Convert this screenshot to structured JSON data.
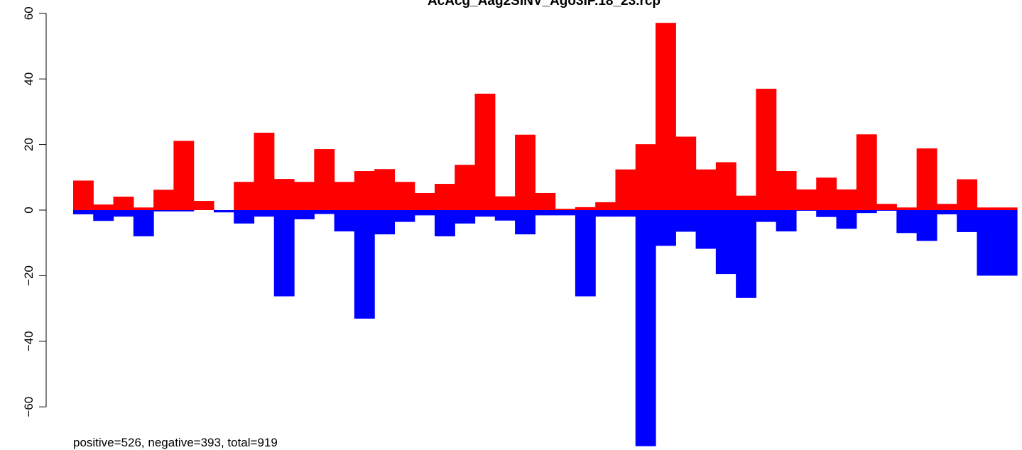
{
  "chart_data": {
    "type": "bar",
    "title": "AcAcg_Aag2SINV_Ago3IP.18_23.rcp",
    "xlabel": "",
    "ylabel": "",
    "ylim": [
      -72,
      60
    ],
    "y_ticks": [
      -60,
      -40,
      -20,
      0,
      20,
      40,
      60
    ],
    "grid": false,
    "legend": "none",
    "bar_count": 47,
    "series": [
      {
        "color": "#ff0000",
        "values": [
          9.0,
          1.7,
          4.1,
          0.8,
          6.2,
          21.1,
          2.8,
          0.0,
          8.6,
          23.6,
          9.5,
          8.6,
          18.6,
          8.6,
          11.9,
          12.5,
          8.6,
          5.2,
          8.0,
          13.8,
          35.5,
          4.2,
          23.0,
          5.2,
          0.4,
          0.9,
          2.4,
          12.4,
          20.1,
          57.1,
          22.4,
          12.4,
          14.6,
          4.4,
          37.0,
          11.9,
          6.3,
          9.9,
          6.3,
          23.1,
          1.9,
          0.8,
          18.8,
          1.9,
          9.4,
          0.8,
          0.8
        ]
      },
      {
        "color": "#0000ff",
        "values": [
          -1.3,
          -3.3,
          -2.0,
          -8.0,
          -0.4,
          -0.4,
          0.0,
          -0.7,
          -4.1,
          -2.0,
          -26.3,
          -2.8,
          -1.2,
          -6.5,
          -33.1,
          -7.4,
          -3.6,
          -1.6,
          -8.0,
          -4.1,
          -2.0,
          -3.2,
          -7.4,
          -1.6,
          -1.6,
          -26.3,
          -2.0,
          -2.0,
          -72.0,
          -10.9,
          -6.6,
          -11.8,
          -19.5,
          -26.8,
          -3.6,
          -6.5,
          -0.2,
          -2.1,
          -5.7,
          -0.9,
          -0.2,
          -7.0,
          -9.4,
          -1.3,
          -6.7,
          -20.0,
          -20.0
        ]
      }
    ],
    "annotation": "positive=526, negative=393, total=919"
  }
}
